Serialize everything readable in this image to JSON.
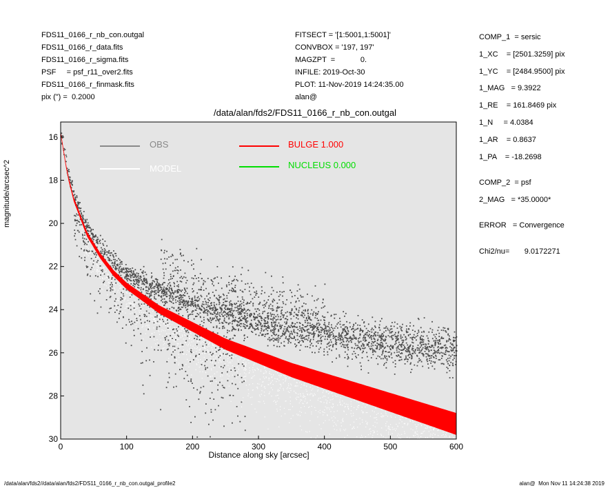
{
  "header": {
    "left": [
      "FDS11_0166_r_nb_con.outgal",
      "FDS11_0166_r_data.fits",
      "FDS11_0166_r_sigma.fits",
      "PSF     = psf_r11_over2.fits",
      "FDS11_0166_r_finmask.fits",
      "pix (\") =  0.2000"
    ],
    "middle": [
      "FITSECT = '[1:5001,1:5001]'",
      "CONVBOX = '197, 197'",
      "MAGZPT  =            0.",
      "INFILE: 2019-Oct-30",
      "PLOT: 11-Nov-2019 14:24:35.00",
      "alan@"
    ]
  },
  "params": [
    "COMP_1  = sersic",
    "1_XC    = [2501.3259] pix",
    "1_YC    = [2484.9500] pix",
    "1_MAG   = 9.3922",
    "1_RE    = 161.8469 pix",
    "1_N     = 4.0384",
    "1_AR    = 0.8637",
    "1_PA    = -18.2698",
    "COMP_2  = psf",
    "2_MAG   = *35.0000*",
    "ERROR   = Convergence",
    "Chi2/nu=       9.0172271"
  ],
  "footer": {
    "left": "/data/alan/fds2//data/alan/fds2/FDS11_0166_r_nb_con.outgal_profile2",
    "right": "alan@  Mon Nov 11 14:24:38 2019"
  },
  "colors": {
    "panel": "#e5e5e5",
    "obs": "#4d4d4d",
    "model": "#ffffff",
    "bulge": "#ff0000",
    "nucleus": "#00dd00"
  },
  "chart_data": {
    "type": "scatter",
    "title": "/data/alan/fds2/FDS11_0166_r_nb_con.outgal",
    "xlabel": "Distance along sky [arcsec]",
    "ylabel": "magnitude/arcsec^2",
    "xlim": [
      0,
      600
    ],
    "ylim": [
      30,
      15.3
    ],
    "y_inverted": true,
    "xticks": [
      0,
      100,
      200,
      300,
      400,
      500,
      600
    ],
    "yticks": [
      16,
      18,
      20,
      22,
      24,
      26,
      28,
      30
    ],
    "legend": [
      {
        "label": "OBS",
        "color": "#888888"
      },
      {
        "label": "MODEL",
        "color": "#ffffff"
      },
      {
        "label": "BULGE  1.000",
        "color": "#ff0000"
      },
      {
        "label": "NUCLEUS  0.000",
        "color": "#00dd00"
      }
    ],
    "series": [
      {
        "name": "OBS",
        "x": [
          0,
          10,
          20,
          40,
          60,
          80,
          100,
          150,
          200,
          250,
          300,
          350,
          400,
          450,
          500,
          550,
          600
        ],
        "y": [
          15.9,
          17.6,
          18.7,
          20.2,
          21.1,
          21.8,
          22.3,
          23.1,
          23.7,
          24.2,
          24.6,
          24.9,
          25.1,
          25.35,
          25.55,
          25.7,
          25.85
        ]
      },
      {
        "name": "BULGE",
        "x": [
          0,
          10,
          20,
          40,
          60,
          80,
          100,
          150,
          200,
          250,
          300,
          350,
          400,
          450,
          500,
          550,
          600
        ],
        "y": [
          15.8,
          17.7,
          18.9,
          20.5,
          21.5,
          22.3,
          22.9,
          24.0,
          24.8,
          25.6,
          26.2,
          26.8,
          27.3,
          27.8,
          28.3,
          28.8,
          29.3
        ]
      },
      {
        "name": "MODEL",
        "x": [
          0,
          10,
          20,
          40,
          60,
          80,
          100,
          150,
          200,
          250,
          300,
          350,
          400,
          450,
          500,
          550,
          600
        ],
        "y": [
          15.8,
          17.7,
          18.9,
          20.5,
          21.5,
          22.3,
          22.9,
          24.0,
          24.8,
          25.6,
          26.2,
          26.8,
          27.3,
          27.8,
          28.3,
          28.8,
          29.3
        ]
      }
    ]
  }
}
